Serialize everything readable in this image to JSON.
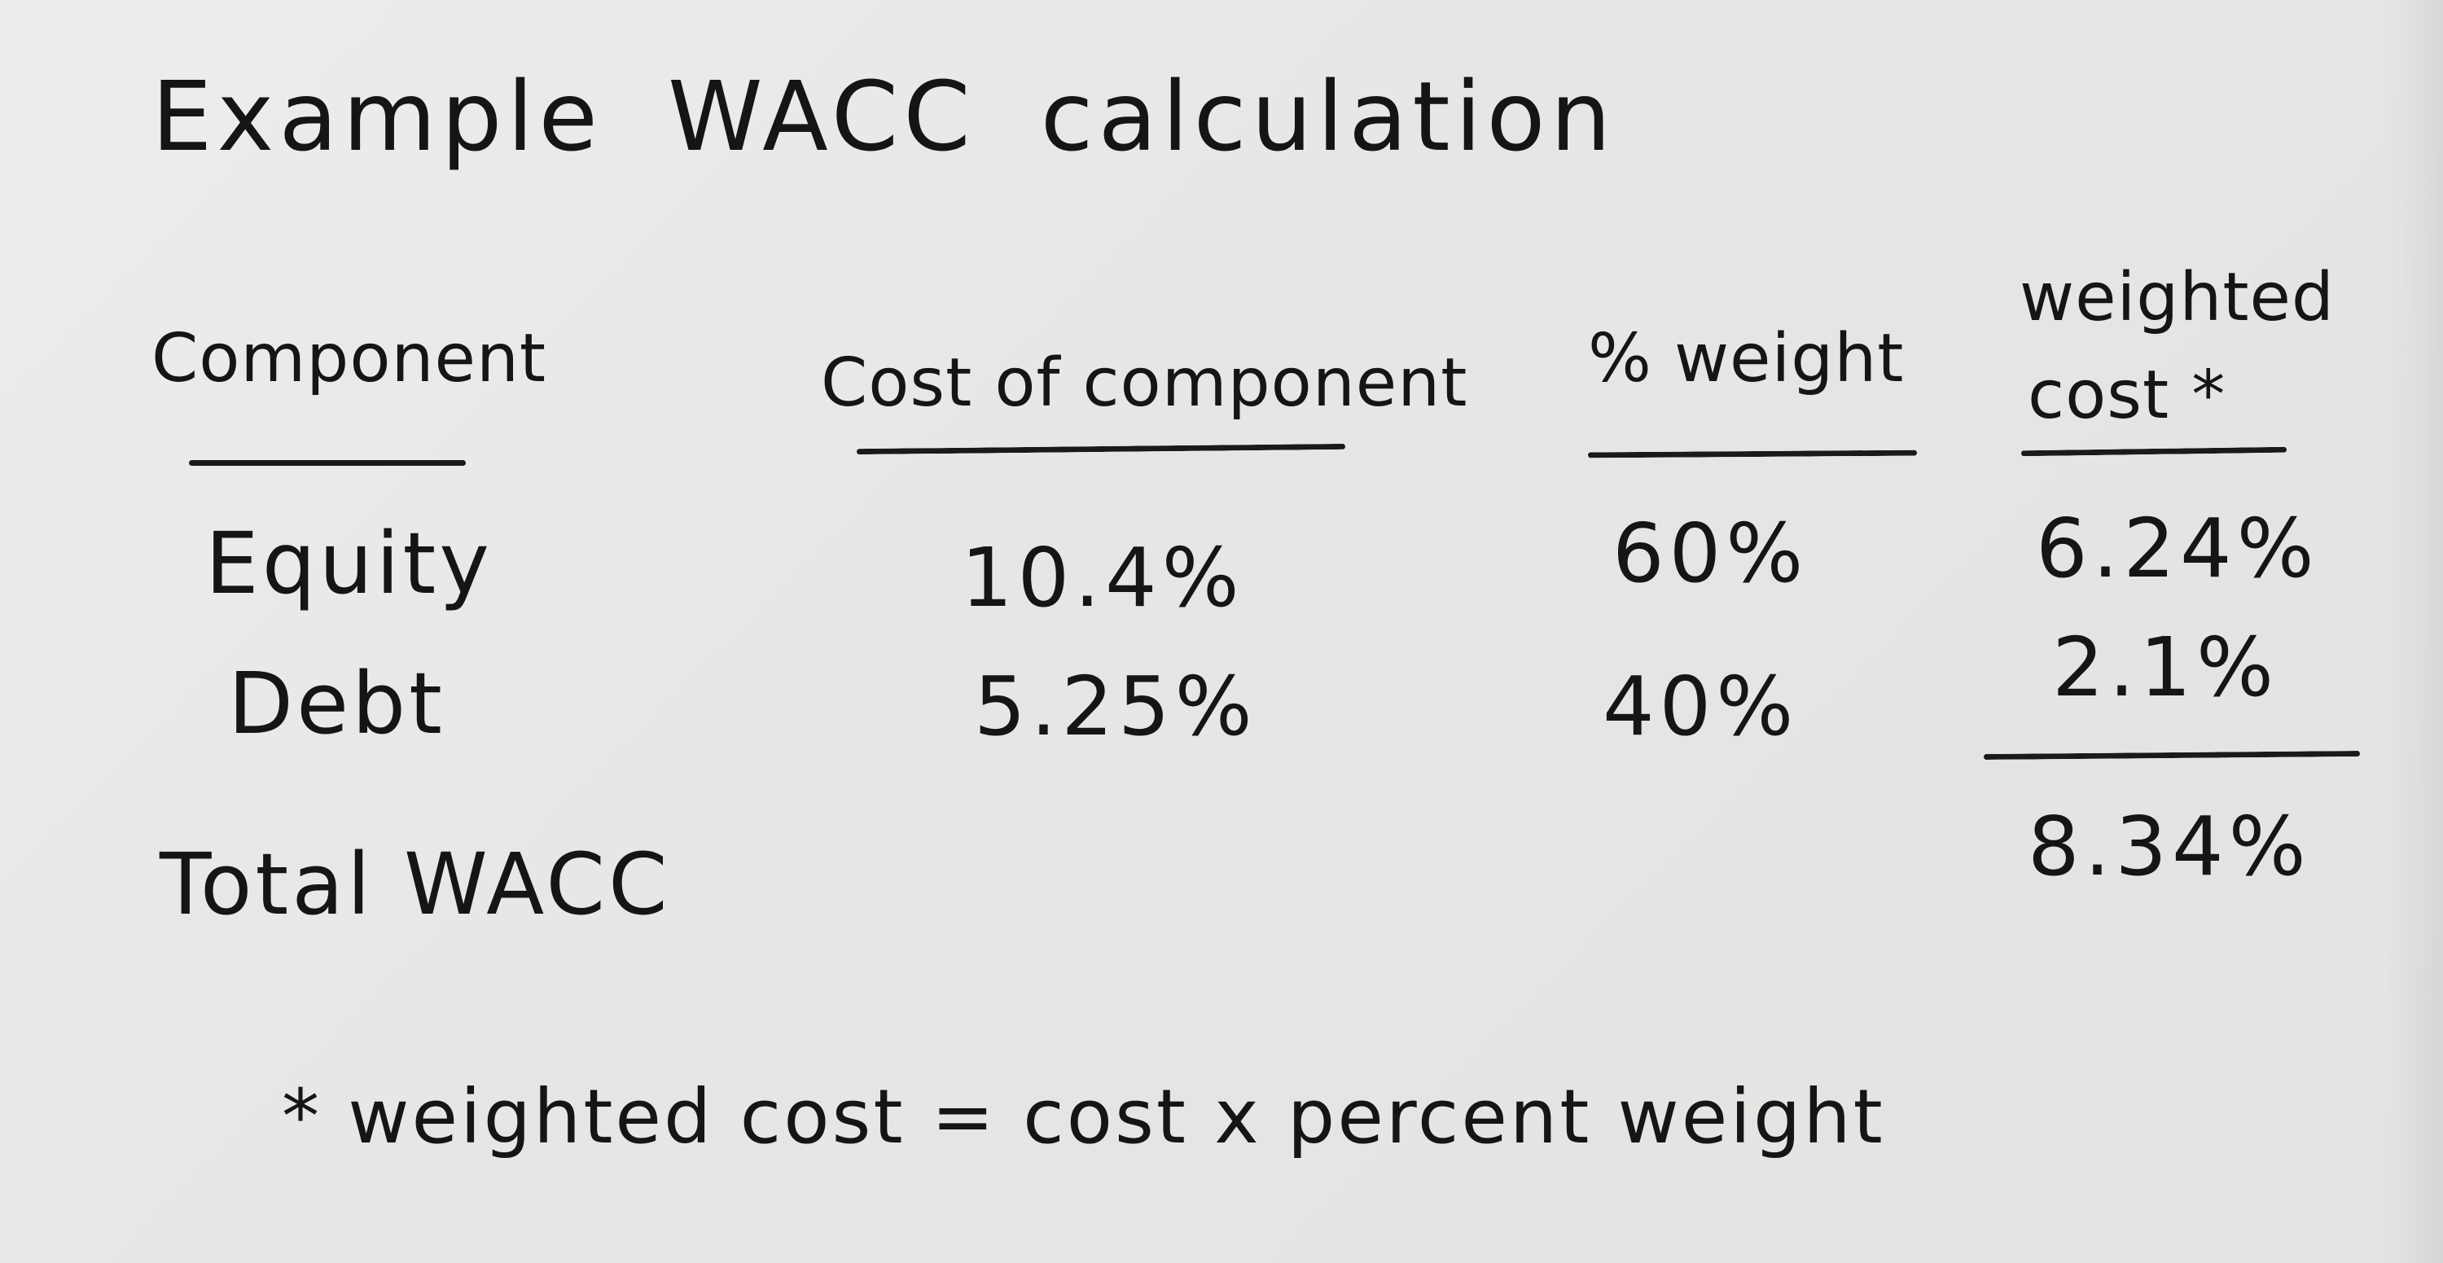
{
  "title": "Example WACC calculation",
  "title_parts": [
    "Example",
    "WACC",
    "calculation"
  ],
  "headers": {
    "component": "Component",
    "cost": "Cost of component",
    "weight": "% weight",
    "weighted_cost_line1": "weighted",
    "weighted_cost_line2": "cost *"
  },
  "rows": [
    {
      "component": "Equity",
      "cost": "10.4%",
      "weight": "60%",
      "weighted_cost": "6.24%"
    },
    {
      "component": "Debt",
      "cost": "5.25%",
      "weight": "40%",
      "weighted_cost": "2.1%"
    }
  ],
  "total": {
    "label": "Total WACC",
    "weighted_cost": "8.34%"
  },
  "footnote": "* weighted cost = cost x percent weight"
}
